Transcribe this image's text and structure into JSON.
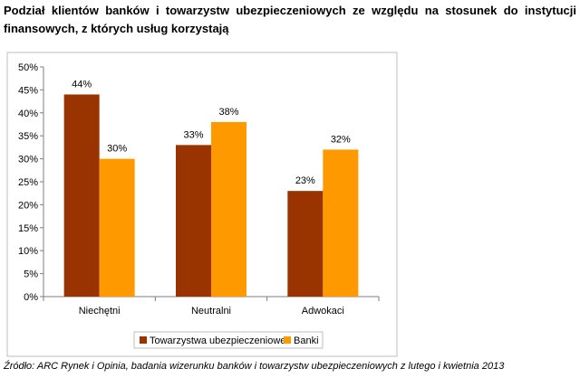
{
  "title": "Podział klientów banków i towarzystw ubezpieczeniowych ze względu na stosunek do instytucji finansowych, z których usług korzystają",
  "source": "Źródło: ARC Rynek i Opinia, badania wizerunku banków i towarzystw ubezpieczeniowych z lutego i kwietnia 2013",
  "colors": {
    "towarzystwa": "#993300",
    "banki": "#ff9900",
    "axis": "#7f7f7f",
    "border": "#bfbfbf"
  },
  "chart_data": {
    "type": "bar",
    "categories": [
      "Niechętni",
      "Neutralni",
      "Adwokaci"
    ],
    "series": [
      {
        "name": "Towarzystwa ubezpieczeniowe",
        "values": [
          44,
          33,
          23
        ],
        "labels": [
          "44%",
          "33%",
          "23%"
        ]
      },
      {
        "name": "Banki",
        "values": [
          30,
          38,
          32
        ],
        "labels": [
          "30%",
          "38%",
          "32%"
        ]
      }
    ],
    "yticks": [
      "0%",
      "5%",
      "10%",
      "15%",
      "20%",
      "25%",
      "30%",
      "35%",
      "40%",
      "45%",
      "50%"
    ],
    "ylim": [
      0,
      50
    ],
    "grid": false,
    "legend_position": "bottom-center",
    "xlabel": "",
    "ylabel": ""
  }
}
